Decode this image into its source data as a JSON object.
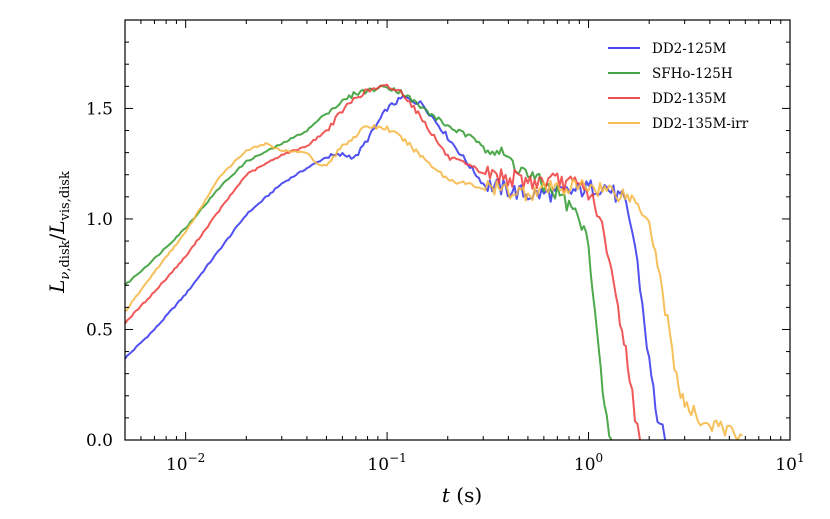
{
  "chart_data": {
    "type": "line",
    "title": "",
    "xlabel": "t (s)",
    "ylabel": "L_{ν,disk} / L_{vis,disk}",
    "xscale": "log",
    "xlim": [
      0.005,
      10
    ],
    "ylim": [
      0,
      1.9
    ],
    "grid": false,
    "legend_position": "top-right",
    "x_ticks": [
      {
        "value": 0.01,
        "base": "10",
        "exp": "−2"
      },
      {
        "value": 0.1,
        "base": "10",
        "exp": "−1"
      },
      {
        "value": 1,
        "base": "10",
        "exp": "0"
      },
      {
        "value": 10,
        "base": "10",
        "exp": "1"
      }
    ],
    "y_ticks": [
      {
        "value": 0.0,
        "label": "0.0"
      },
      {
        "value": 0.5,
        "label": "0.5"
      },
      {
        "value": 1.0,
        "label": "1.0"
      },
      {
        "value": 1.5,
        "label": "1.5"
      }
    ],
    "series": [
      {
        "name": "DD2-125M",
        "color": "#3333ee",
        "x": [
          0.005,
          0.007,
          0.01,
          0.015,
          0.02,
          0.03,
          0.04,
          0.05,
          0.06,
          0.07,
          0.08,
          0.1,
          0.12,
          0.15,
          0.2,
          0.3,
          0.5,
          0.8,
          1.0,
          1.2,
          1.4,
          1.5,
          1.6,
          1.7,
          1.8,
          2.0,
          2.2,
          2.4
        ],
        "y": [
          0.37,
          0.5,
          0.66,
          0.87,
          1.02,
          1.16,
          1.23,
          1.28,
          1.29,
          1.28,
          1.36,
          1.5,
          1.55,
          1.52,
          1.37,
          1.16,
          1.11,
          1.12,
          1.14,
          1.15,
          1.1,
          1.08,
          1.0,
          0.88,
          0.7,
          0.35,
          0.1,
          0.0
        ]
      },
      {
        "name": "SFHo-125H",
        "color": "#2e9a2e",
        "x": [
          0.005,
          0.007,
          0.01,
          0.015,
          0.02,
          0.03,
          0.04,
          0.05,
          0.06,
          0.07,
          0.08,
          0.1,
          0.12,
          0.15,
          0.2,
          0.3,
          0.4,
          0.5,
          0.6,
          0.7,
          0.8,
          0.9,
          1.0,
          1.05,
          1.1,
          1.15,
          1.2,
          1.3
        ],
        "y": [
          0.7,
          0.82,
          0.96,
          1.15,
          1.26,
          1.34,
          1.4,
          1.48,
          1.53,
          1.57,
          1.58,
          1.6,
          1.57,
          1.5,
          1.42,
          1.34,
          1.27,
          1.2,
          1.15,
          1.12,
          1.06,
          1.0,
          0.88,
          0.7,
          0.5,
          0.3,
          0.12,
          0.0
        ]
      },
      {
        "name": "DD2-135M",
        "color": "#ee3b3b",
        "x": [
          0.005,
          0.007,
          0.01,
          0.015,
          0.02,
          0.03,
          0.04,
          0.05,
          0.06,
          0.07,
          0.08,
          0.1,
          0.12,
          0.15,
          0.2,
          0.3,
          0.5,
          0.7,
          0.9,
          1.0,
          1.1,
          1.2,
          1.3,
          1.4,
          1.5,
          1.6,
          1.7,
          1.8
        ],
        "y": [
          0.53,
          0.67,
          0.83,
          1.05,
          1.2,
          1.29,
          1.33,
          1.4,
          1.49,
          1.55,
          1.58,
          1.6,
          1.57,
          1.45,
          1.28,
          1.21,
          1.17,
          1.17,
          1.15,
          1.12,
          1.05,
          0.9,
          0.75,
          0.6,
          0.45,
          0.3,
          0.1,
          0.0
        ]
      },
      {
        "name": "DD2-135M-irr",
        "color": "#f5b63f",
        "x": [
          0.005,
          0.007,
          0.01,
          0.015,
          0.02,
          0.025,
          0.03,
          0.04,
          0.045,
          0.05,
          0.06,
          0.07,
          0.08,
          0.1,
          0.12,
          0.15,
          0.2,
          0.3,
          0.5,
          0.7,
          1.0,
          1.3,
          1.6,
          1.8,
          2.0,
          2.2,
          2.4,
          2.6,
          2.8,
          3.0,
          3.5,
          4.0,
          5.0,
          5.8
        ],
        "y": [
          0.58,
          0.76,
          0.94,
          1.2,
          1.31,
          1.34,
          1.31,
          1.3,
          1.25,
          1.24,
          1.33,
          1.38,
          1.42,
          1.41,
          1.36,
          1.28,
          1.18,
          1.14,
          1.12,
          1.14,
          1.15,
          1.13,
          1.1,
          1.06,
          1.0,
          0.8,
          0.6,
          0.4,
          0.25,
          0.15,
          0.1,
          0.07,
          0.04,
          0.02
        ]
      }
    ]
  }
}
